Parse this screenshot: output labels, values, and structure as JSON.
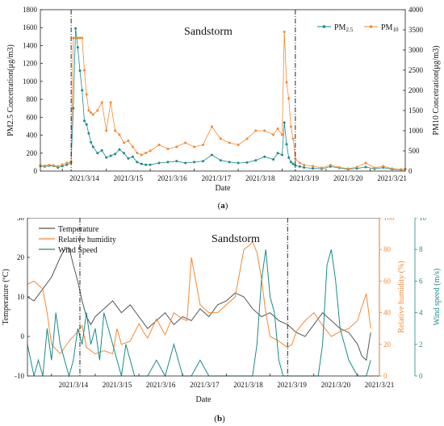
{
  "chart_data": [
    {
      "type": "line",
      "caption": "(a)",
      "panel_letter": "a",
      "annotation": "Sandstorm",
      "xlabel": "Date",
      "ylabel_left": "PM2.5 Concetration(μg/m3)",
      "ylabel_right": "PM10 Concetration(μg/m3)",
      "x_tick_labels": [
        "2021/3/14",
        "2021/3/15",
        "2021/3/16",
        "2021/3/17",
        "2021/3/18",
        "2021/3/19",
        "2021/3/20",
        "2021/3/21"
      ],
      "x_ticks": [
        14,
        15,
        16,
        17,
        18,
        19,
        20,
        21
      ],
      "xlim": [
        13.5,
        21.8
      ],
      "ylim_left": [
        0,
        1800
      ],
      "yticks_left": [
        0,
        200,
        400,
        600,
        800,
        1000,
        1200,
        1400,
        1600,
        1800
      ],
      "ylim_right": [
        0,
        4000
      ],
      "yticks_right": [
        0,
        500,
        1000,
        1500,
        2000,
        2500,
        3000,
        3500,
        4000
      ],
      "event_lines_x": [
        14.2,
        19.3
      ],
      "grid": false,
      "legend_position": "top-right",
      "series": [
        {
          "name": "PM2.5",
          "name_main": "PM",
          "name_sub": "2.5",
          "axis": "left",
          "color": "#1a8a8a",
          "marker": "circle",
          "x": [
            13.5,
            13.6,
            13.7,
            13.8,
            13.9,
            14.0,
            14.1,
            14.2,
            14.25,
            14.3,
            14.35,
            14.4,
            14.45,
            14.5,
            14.55,
            14.6,
            14.65,
            14.7,
            14.8,
            14.9,
            15.0,
            15.1,
            15.2,
            15.3,
            15.4,
            15.5,
            15.6,
            15.7,
            15.8,
            15.9,
            16.0,
            16.2,
            16.4,
            16.6,
            16.8,
            17.0,
            17.2,
            17.4,
            17.6,
            17.8,
            18.0,
            18.2,
            18.4,
            18.6,
            18.8,
            18.9,
            19.0,
            19.05,
            19.1,
            19.15,
            19.2,
            19.25,
            19.3,
            19.4,
            19.5,
            19.7,
            19.9,
            20.1,
            20.3,
            20.5,
            20.7,
            20.9,
            21.1,
            21.3,
            21.5,
            21.7,
            21.8
          ],
          "y": [
            55,
            50,
            60,
            58,
            40,
            55,
            70,
            95,
            700,
            1590,
            1380,
            1120,
            900,
            560,
            520,
            420,
            320,
            270,
            200,
            230,
            150,
            170,
            190,
            240,
            200,
            140,
            160,
            100,
            80,
            70,
            70,
            90,
            100,
            110,
            90,
            100,
            110,
            180,
            120,
            100,
            90,
            95,
            120,
            160,
            130,
            200,
            180,
            540,
            300,
            150,
            100,
            80,
            60,
            50,
            40,
            30,
            25,
            50,
            35,
            20,
            30,
            45,
            25,
            40,
            20,
            15,
            20
          ]
        },
        {
          "name": "PM10",
          "name_main": "PM",
          "name_sub": "10",
          "axis": "right",
          "color": "#f28a30",
          "marker": "circle",
          "x": [
            13.5,
            13.6,
            13.7,
            13.8,
            13.9,
            14.0,
            14.1,
            14.2,
            14.25,
            14.3,
            14.35,
            14.4,
            14.45,
            14.5,
            14.55,
            14.6,
            14.65,
            14.7,
            14.8,
            14.9,
            15.0,
            15.1,
            15.2,
            15.3,
            15.4,
            15.5,
            15.6,
            15.7,
            15.8,
            15.9,
            16.0,
            16.2,
            16.4,
            16.6,
            16.8,
            17.0,
            17.2,
            17.4,
            17.6,
            17.8,
            18.0,
            18.2,
            18.4,
            18.6,
            18.8,
            18.9,
            19.0,
            19.05,
            19.1,
            19.15,
            19.2,
            19.25,
            19.3,
            19.4,
            19.5,
            19.7,
            19.9,
            20.1,
            20.3,
            20.5,
            20.7,
            20.9,
            21.1,
            21.3,
            21.5,
            21.7,
            21.8
          ],
          "y": [
            140,
            130,
            150,
            140,
            120,
            160,
            200,
            230,
            3300,
            3300,
            3300,
            3300,
            3300,
            2500,
            1900,
            1500,
            1450,
            1400,
            1500,
            1700,
            1000,
            1700,
            1000,
            900,
            700,
            750,
            600,
            450,
            400,
            450,
            500,
            650,
            550,
            600,
            700,
            600,
            650,
            1100,
            800,
            700,
            650,
            800,
            1000,
            1000,
            900,
            1050,
            900,
            3450,
            2200,
            1800,
            1100,
            800,
            300,
            200,
            150,
            120,
            80,
            150,
            90,
            60,
            100,
            200,
            80,
            120,
            60,
            40,
            50
          ]
        }
      ]
    },
    {
      "type": "line",
      "caption": "(b)",
      "panel_letter": "b",
      "annotation": "Sandstorm",
      "xlabel": "Date",
      "ylabel_left": "Temperature (ºC)",
      "ylabel_right1": "Relative humidity (%)",
      "ylabel_right2": "Wind speed (m/s)",
      "x_tick_labels": [
        "2021/3/14",
        "2021/3/15",
        "2021/3/16",
        "2021/3/17",
        "2021/3/18",
        "2021/3/19",
        "2021/3/20",
        "2021/3/21"
      ],
      "x_ticks": [
        14,
        15,
        16,
        17,
        18,
        19,
        20,
        21
      ],
      "xlim": [
        13.45,
        21.5
      ],
      "ylim_left": [
        -10,
        30
      ],
      "yticks_left": [
        -10,
        0,
        10,
        20,
        30
      ],
      "ylim_right1": [
        0,
        100
      ],
      "yticks_right1": [
        0,
        20,
        40,
        60,
        80,
        100
      ],
      "ylim_right2": [
        0,
        10
      ],
      "yticks_right2": [
        0,
        2,
        4,
        6,
        8,
        10
      ],
      "event_lines_x": [
        14.65,
        19.4
      ],
      "grid": false,
      "legend_position": "top-left",
      "series": [
        {
          "name": "Temperature",
          "axis": "left",
          "color": "#555555",
          "x": [
            13.45,
            13.6,
            13.8,
            14.0,
            14.2,
            14.3,
            14.4,
            14.5,
            14.6,
            14.7,
            14.8,
            14.9,
            15.0,
            15.2,
            15.4,
            15.6,
            15.8,
            16.0,
            16.2,
            16.4,
            16.6,
            16.8,
            17.0,
            17.2,
            17.4,
            17.6,
            17.8,
            18.0,
            18.2,
            18.4,
            18.6,
            18.8,
            19.0,
            19.2,
            19.4,
            19.5,
            19.6,
            19.8,
            20.0,
            20.2,
            20.4,
            20.6,
            20.8,
            21.0,
            21.1,
            21.2,
            21.3
          ],
          "y": [
            10,
            9,
            12,
            15,
            20,
            22,
            22.5,
            18,
            14,
            9,
            5,
            3,
            5,
            7,
            9,
            6,
            8,
            5,
            2,
            4,
            6,
            3,
            5,
            4,
            7,
            5,
            8,
            9,
            11,
            10,
            7,
            5,
            6,
            4,
            3,
            2,
            1,
            0,
            3,
            6,
            4,
            2,
            1,
            -2,
            -5,
            -6,
            1
          ]
        },
        {
          "name": "Relative humidity",
          "axis": "right1",
          "color": "#f28a30",
          "x": [
            13.45,
            13.6,
            13.8,
            13.9,
            14.0,
            14.2,
            14.4,
            14.6,
            14.7,
            14.8,
            14.9,
            15.0,
            15.2,
            15.4,
            15.5,
            15.6,
            15.8,
            16.0,
            16.1,
            16.2,
            16.4,
            16.6,
            16.8,
            17.0,
            17.1,
            17.2,
            17.3,
            17.4,
            17.6,
            17.8,
            18.0,
            18.2,
            18.4,
            18.5,
            18.6,
            18.7,
            18.8,
            18.9,
            19.0,
            19.2,
            19.4,
            19.5,
            19.6,
            19.8,
            20.0,
            20.2,
            20.4,
            20.6,
            20.8,
            21.0,
            21.1,
            21.2,
            21.3
          ],
          "y": [
            58,
            60,
            55,
            40,
            20,
            14,
            22,
            28,
            32,
            18,
            16,
            14,
            16,
            14,
            30,
            20,
            22,
            33,
            28,
            24,
            36,
            26,
            40,
            36,
            35,
            75,
            60,
            45,
            40,
            40,
            45,
            50,
            80,
            82,
            85,
            78,
            62,
            40,
            25,
            22,
            18,
            20,
            28,
            35,
            40,
            32,
            25,
            28,
            30,
            35,
            44,
            52,
            30
          ]
        },
        {
          "name": "Wind Speed",
          "axis": "right2",
          "color": "#1a8a8a",
          "x": [
            13.45,
            13.6,
            13.7,
            13.8,
            13.9,
            14.0,
            14.1,
            14.2,
            14.3,
            14.4,
            14.5,
            14.6,
            14.7,
            14.8,
            14.9,
            15.0,
            15.1,
            15.2,
            15.3,
            15.4,
            15.5,
            15.6,
            15.7,
            15.8,
            15.9,
            16.0,
            16.2,
            16.4,
            16.6,
            16.8,
            17.0,
            17.2,
            17.4,
            17.6,
            17.8,
            18.0,
            18.2,
            18.4,
            18.6,
            18.7,
            18.8,
            18.9,
            19.0,
            19.1,
            19.2,
            19.3,
            19.4,
            19.5,
            19.6,
            19.8,
            20.0,
            20.1,
            20.15,
            20.2,
            20.3,
            20.4,
            20.5,
            20.6,
            20.8,
            21.0,
            21.2,
            21.3
          ],
          "y": [
            2,
            0,
            1,
            0,
            3,
            1,
            4,
            2,
            1,
            0,
            1,
            3,
            2,
            4,
            2,
            3,
            1,
            4,
            3,
            2,
            1,
            0,
            2,
            1,
            0,
            0,
            0,
            1,
            0,
            2,
            0,
            0,
            1,
            0,
            0,
            0,
            0,
            0,
            0,
            2,
            6,
            8,
            5,
            4,
            1,
            0,
            0,
            0,
            0,
            0,
            0,
            0,
            1,
            2,
            7,
            8,
            6,
            3,
            1,
            0,
            0,
            1
          ]
        }
      ]
    }
  ]
}
